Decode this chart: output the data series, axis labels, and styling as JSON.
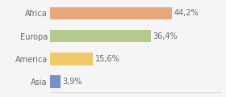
{
  "categories": [
    "Asia",
    "America",
    "Europa",
    "Africa"
  ],
  "values": [
    3.9,
    15.6,
    36.4,
    44.2
  ],
  "labels": [
    "3,9%",
    "15,6%",
    "36,4%",
    "44,2%"
  ],
  "colors": [
    "#7b8ec8",
    "#f0c96b",
    "#b5c98e",
    "#e8a97a"
  ],
  "xlim": [
    0,
    62
  ],
  "background_color": "#f5f5f5",
  "bar_height": 0.55,
  "label_fontsize": 7,
  "tick_fontsize": 7,
  "text_color": "#666666"
}
